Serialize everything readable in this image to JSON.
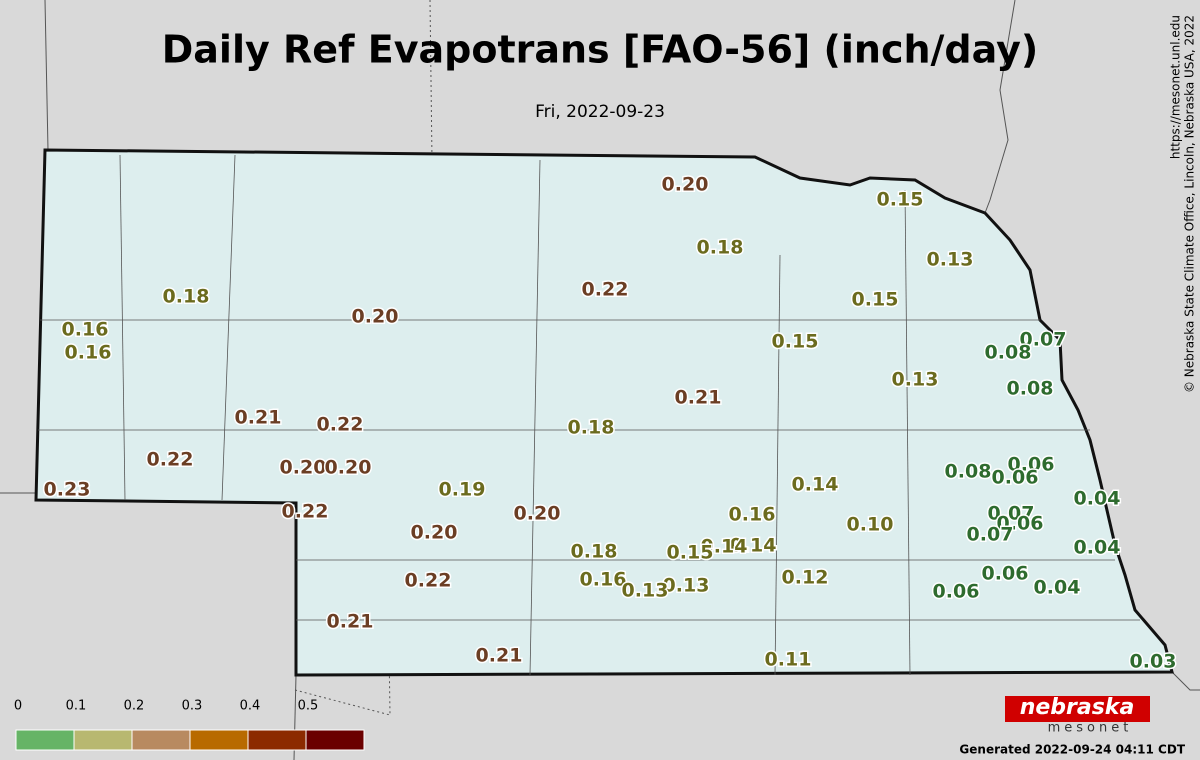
{
  "header": {
    "title": "Daily Ref Evapotrans [FAO-56] (inch/day)",
    "subtitle": "Fri, 2022-09-23"
  },
  "credits": {
    "url": "https://mesonet.unl.edu",
    "copyright": "© Nebraska State Climate Office, Lincoln, Nebraska USA, 2022",
    "generated": "Generated 2022-09-24 04:11 CDT"
  },
  "logo": {
    "top": "nebraska",
    "bottom": "mesonet"
  },
  "legend": {
    "ticks": [
      0,
      0.1,
      0.2,
      0.3,
      0.4,
      0.5
    ],
    "colors": [
      "#66b466",
      "#b8b870",
      "#b88a60",
      "#b86a00",
      "#8c2a00",
      "#6a0000"
    ]
  },
  "stations": [
    "0.20",
    "0.15",
    "0.18",
    "0.13",
    "0.18",
    "0.22",
    "0.15",
    "0.20",
    "0.16",
    "0.07",
    "0.16",
    "0.15",
    "0.08",
    "0.13",
    "0.08",
    "0.21",
    "0.21",
    "0.22",
    "0.18",
    "0.22",
    "0.06",
    "0.08",
    "0.20",
    "0.20",
    "0.06",
    "0.14",
    "0.23",
    "0.19",
    "0.04",
    "0.22",
    "0.16",
    "0.20",
    "0.07",
    "0.10",
    "0.06",
    "0.20",
    "0.07",
    "0.14",
    "0.14",
    "0.18",
    "0.15",
    "0.04",
    "0.22",
    "0.16",
    "0.12",
    "0.06",
    "0.13",
    "0.13",
    "0.06",
    "0.04",
    "0.21",
    "0.21",
    "0.11",
    "0.03"
  ]
}
